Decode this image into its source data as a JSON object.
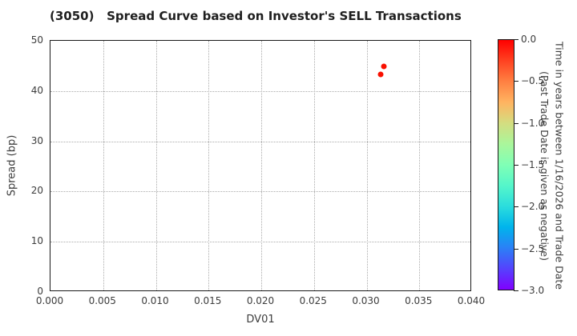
{
  "chart_data": {
    "type": "scatter",
    "title": "(3050)   Spread Curve based on Investor's SELL Transactions",
    "xlabel": "DV01",
    "ylabel": "Spread (bp)",
    "xlim": [
      0.0,
      0.04
    ],
    "ylim": [
      0,
      50
    ],
    "grid": true,
    "x_tick_labels": [
      "0.000",
      "0.005",
      "0.010",
      "0.015",
      "0.020",
      "0.025",
      "0.030",
      "0.035",
      "0.040"
    ],
    "y_tick_labels": [
      "0",
      "10",
      "20",
      "30",
      "40",
      "50"
    ],
    "points": [
      {
        "x": 0.0316,
        "y": 44.9,
        "time_value": 0.0,
        "color": "#f91000"
      },
      {
        "x": 0.0313,
        "y": 43.3,
        "time_value": 0.0,
        "color": "#f91000"
      }
    ],
    "colorbar": {
      "label_line1": "Time in years between 1/16/2026 and Trade Date",
      "label_line2": "(Past Trade Date is given as negative)",
      "tick_labels": [
        "0.0",
        "−0.5",
        "−1.0",
        "−1.5",
        "−2.0",
        "−2.5",
        "−3.0"
      ],
      "value_range": [
        0.0,
        -3.0
      ],
      "gradient_stops": [
        {
          "pos": 0,
          "color": "#ff0000"
        },
        {
          "pos": 8.33,
          "color": "#ff4221"
        },
        {
          "pos": 16.67,
          "color": "#ff8042"
        },
        {
          "pos": 25,
          "color": "#ffb461"
        },
        {
          "pos": 33.33,
          "color": "#d4dd80"
        },
        {
          "pos": 41.67,
          "color": "#aaf69b"
        },
        {
          "pos": 50,
          "color": "#80ffb5"
        },
        {
          "pos": 58.33,
          "color": "#55f6ca"
        },
        {
          "pos": 66.67,
          "color": "#2bdddd"
        },
        {
          "pos": 75,
          "color": "#00b4ec"
        },
        {
          "pos": 83.33,
          "color": "#2b80f6"
        },
        {
          "pos": 91.67,
          "color": "#5542fd"
        },
        {
          "pos": 100,
          "color": "#8000ff"
        }
      ]
    },
    "colors": {
      "background": "#ffffff",
      "grid": "#ababab",
      "spine": "#1a1a1a",
      "tick_text": "#3c3c3c",
      "title_text": "#1f1f1f"
    }
  }
}
